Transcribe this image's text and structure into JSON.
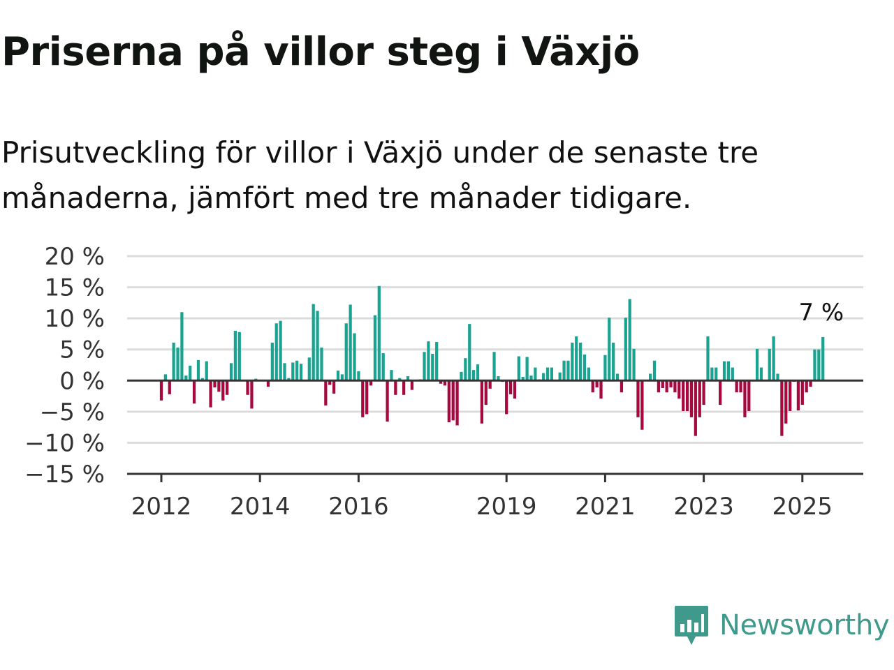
{
  "header": {
    "title": "Priserna på villor steg i Växjö",
    "subtitle": "Prisutveckling för villor i Växjö under de senaste tre månaderna, jämfört med tre månader tidigare."
  },
  "brand": {
    "name": "Newsworthy",
    "icon": "newsworthy-logo-icon",
    "color": "#3f9a8c"
  },
  "chart_data": {
    "type": "bar",
    "ylim": [
      -15,
      20
    ],
    "yticks": [
      20,
      15,
      10,
      5,
      0,
      -5,
      -10,
      -15
    ],
    "ytick_labels": [
      "20 %",
      "15 %",
      "10 %",
      "5 %",
      "0 %",
      "−5 %",
      "−10 %",
      "−15 %"
    ],
    "xticks": [
      2012,
      2014,
      2016,
      2019,
      2021,
      2023,
      2025
    ],
    "xtick_labels": [
      "2012",
      "2014",
      "2016",
      "2019",
      "2021",
      "2023",
      "2025"
    ],
    "grid": true,
    "colors": {
      "positive": "#1aa391",
      "negative": "#a6093d",
      "grid": "#dcdcdc",
      "axis": "#333333"
    },
    "series": [
      {
        "x_start": "2012-01",
        "frequency": "monthly",
        "values": [
          -3.2,
          1.0,
          -2.2,
          6.1,
          5.3,
          11.0,
          0.8,
          2.4,
          -3.7,
          3.3,
          0.4,
          3.1,
          -4.3,
          -1.1,
          -1.8,
          -3.2,
          -2.3,
          2.8,
          8.0,
          7.8,
          0.0,
          -2.3,
          -4.5,
          0.3,
          0.1,
          0.0,
          -1.0,
          6.1,
          9.2,
          9.6,
          2.8,
          0.4,
          2.9,
          3.2,
          2.7,
          0.1,
          3.7,
          12.3,
          11.2,
          5.3,
          -4.0,
          -0.7,
          -2.1,
          1.6,
          1.0,
          9.2,
          12.2,
          7.6,
          1.5,
          -5.9,
          -5.4,
          -0.8,
          10.5,
          15.2,
          4.4,
          -6.6,
          1.7,
          -2.3,
          0.4,
          -2.3,
          0.7,
          -1.5,
          0.1,
          0.2,
          4.6,
          6.3,
          4.3,
          6.2,
          -0.5,
          -0.8,
          -6.7,
          -6.4,
          -7.2,
          1.4,
          3.6,
          9.1,
          1.7,
          2.6,
          -6.9,
          -3.9,
          -1.3,
          4.6,
          0.7,
          -0.2,
          -5.4,
          -2.2,
          -2.9,
          3.9,
          0.6,
          3.8,
          0.8,
          2.1,
          0.2,
          1.2,
          2.1,
          2.1,
          0.1,
          1.3,
          3.2,
          3.2,
          6.1,
          7.1,
          6.1,
          4.2,
          2.1,
          -1.9,
          -1.1,
          -2.9,
          4.1,
          10.1,
          6.1,
          1.1,
          -1.9,
          10.1,
          13.1,
          5.1,
          -5.9,
          -7.9,
          0.1,
          1.1,
          3.2,
          -1.9,
          -1.2,
          -1.9,
          -1.1,
          -1.9,
          -2.9,
          -4.9,
          -4.9,
          -5.9,
          -8.9,
          -5.9,
          -3.9,
          7.1,
          2.1,
          2.1,
          -3.9,
          3.1,
          3.1,
          2.1,
          -1.9,
          -1.9,
          -5.9,
          -4.9,
          0.1,
          5.1,
          2.1,
          0.1,
          5.1,
          7.1,
          1.1,
          -8.9,
          -6.9,
          -4.9,
          -0.2,
          -4.8,
          -3.9,
          -1.9,
          -1.0,
          5.0,
          5.0,
          7.0
        ]
      }
    ],
    "annotation": {
      "text": "7 %",
      "target": "last"
    }
  }
}
